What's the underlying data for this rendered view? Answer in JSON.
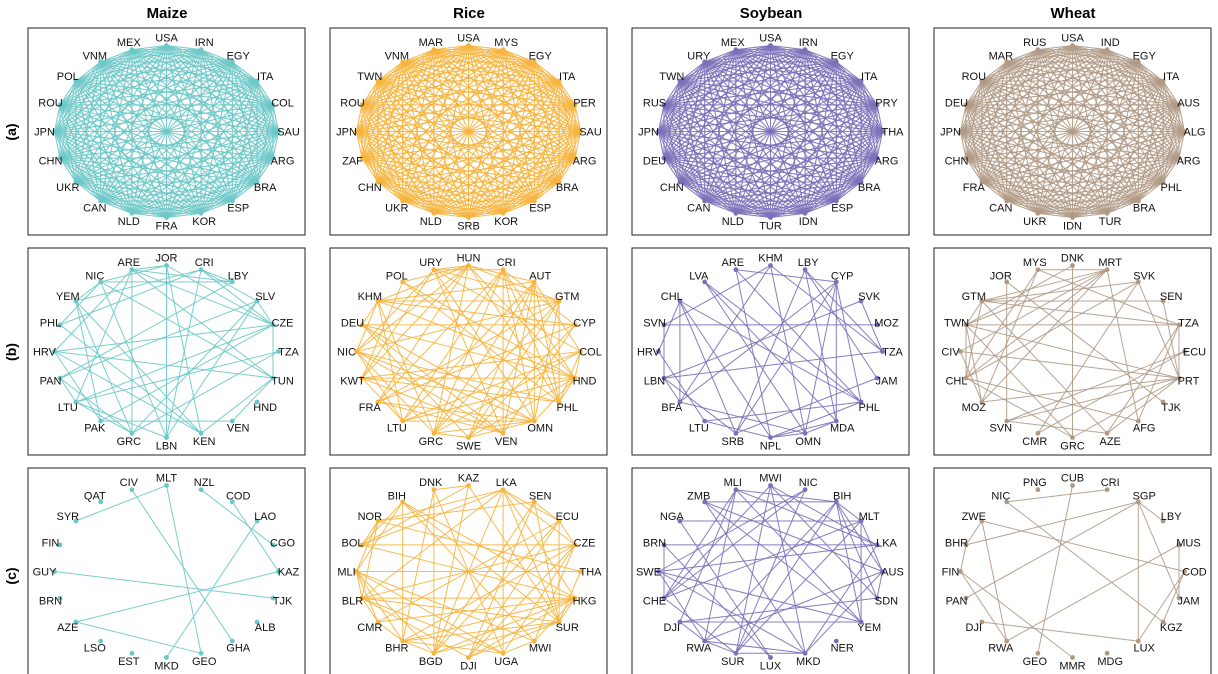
{
  "crops": [
    {
      "name": "Maize",
      "color": "#6cc8c8"
    },
    {
      "name": "Rice",
      "color": "#f6b43c"
    },
    {
      "name": "Soybean",
      "color": "#7b6fb8"
    },
    {
      "name": "Wheat",
      "color": "#b09a86"
    }
  ],
  "rows": [
    "(a)",
    "(b)",
    "(c)"
  ],
  "panels": [
    [
      {
        "nodes": [
          "USA",
          "IRN",
          "EGY",
          "ITA",
          "COL",
          "SAU",
          "ARG",
          "BRA",
          "ESP",
          "KOR",
          "FRA",
          "NLD",
          "CAN",
          "UKR",
          "CHN",
          "JPN",
          "ROU",
          "POL",
          "VNM",
          "MEX"
        ],
        "density": "complete"
      },
      {
        "nodes": [
          "USA",
          "MYS",
          "EGY",
          "ITA",
          "PER",
          "SAU",
          "ARG",
          "BRA",
          "ESP",
          "KOR",
          "SRB",
          "NLD",
          "UKR",
          "CHN",
          "ZAF",
          "JPN",
          "ROU",
          "TWN",
          "VNM",
          "MAR"
        ],
        "density": "complete"
      },
      {
        "nodes": [
          "USA",
          "IRN",
          "EGY",
          "ITA",
          "PRY",
          "THA",
          "ARG",
          "BRA",
          "ESP",
          "IDN",
          "TUR",
          "NLD",
          "CAN",
          "CHN",
          "DEU",
          "JPN",
          "RUS",
          "TWN",
          "URY",
          "MEX"
        ],
        "density": "complete"
      },
      {
        "nodes": [
          "USA",
          "IND",
          "EGY",
          "ITA",
          "AUS",
          "ALG",
          "ARG",
          "PHL",
          "BRA",
          "TUR",
          "IDN",
          "UKR",
          "CAN",
          "FRA",
          "CHN",
          "JPN",
          "DEU",
          "ROU",
          "MAR",
          "RUS"
        ],
        "density": "complete"
      }
    ],
    [
      {
        "nodes": [
          "JOR",
          "CRI",
          "LBY",
          "SLV",
          "CZE",
          "TZA",
          "TUN",
          "HND",
          "VEN",
          "KEN",
          "LBN",
          "GRC",
          "PAK",
          "LTU",
          "PAN",
          "HRV",
          "PHL",
          "YEM",
          "NIC",
          "ARE"
        ],
        "density": "medium"
      },
      {
        "nodes": [
          "HUN",
          "CRI",
          "AUT",
          "GTM",
          "CYP",
          "COL",
          "HND",
          "PHL",
          "OMN",
          "VEN",
          "SWE",
          "GRC",
          "LTU",
          "FRA",
          "KWT",
          "NIC",
          "DEU",
          "KHM",
          "POL",
          "URY"
        ],
        "density": "dense"
      },
      {
        "nodes": [
          "KHM",
          "LBY",
          "CYP",
          "SVK",
          "MOZ",
          "TZA",
          "JAM",
          "PHL",
          "MDA",
          "OMN",
          "NPL",
          "SRB",
          "LTU",
          "BFA",
          "LBN",
          "HRV",
          "SVN",
          "CHL",
          "LVA",
          "ARE"
        ],
        "density": "medium"
      },
      {
        "nodes": [
          "DNK",
          "MRT",
          "SVK",
          "SEN",
          "TZA",
          "ECU",
          "PRT",
          "TJK",
          "AFG",
          "AZE",
          "GRC",
          "CMR",
          "SVN",
          "MOZ",
          "CHL",
          "CIV",
          "TWN",
          "GTM",
          "JOR",
          "MYS"
        ],
        "density": "medium"
      }
    ],
    [
      {
        "nodes": [
          "MLT",
          "NZL",
          "COD",
          "LAO",
          "CGO",
          "KAZ",
          "TJK",
          "ALB",
          "GHA",
          "GEO",
          "MKD",
          "EST",
          "LSO",
          "AZE",
          "BRN",
          "GUY",
          "FIN",
          "SYR",
          "QAT",
          "CIV"
        ],
        "density": "sparse"
      },
      {
        "nodes": [
          "KAZ",
          "LKA",
          "SEN",
          "ECU",
          "CZE",
          "THA",
          "HKG",
          "SUR",
          "MWI",
          "UGA",
          "DJI",
          "BGD",
          "BHR",
          "CMR",
          "BLR",
          "MLI",
          "BOL",
          "NOR",
          "BIH",
          "DNK"
        ],
        "density": "dense"
      },
      {
        "nodes": [
          "MWI",
          "NIC",
          "BIH",
          "MLT",
          "LKA",
          "AUS",
          "SDN",
          "YEM",
          "NER",
          "MKD",
          "LUX",
          "SUR",
          "RWA",
          "DJI",
          "CHE",
          "SWE",
          "BRN",
          "NGA",
          "ZMB",
          "MLI"
        ],
        "density": "medium"
      },
      {
        "nodes": [
          "CUB",
          "CRI",
          "SGP",
          "LBY",
          "MUS",
          "COD",
          "JAM",
          "KGZ",
          "LUX",
          "MDG",
          "MMR",
          "GEO",
          "RWA",
          "DJI",
          "PAN",
          "FIN",
          "BHR",
          "ZWE",
          "NIC",
          "PNG"
        ],
        "density": "light"
      }
    ]
  ]
}
